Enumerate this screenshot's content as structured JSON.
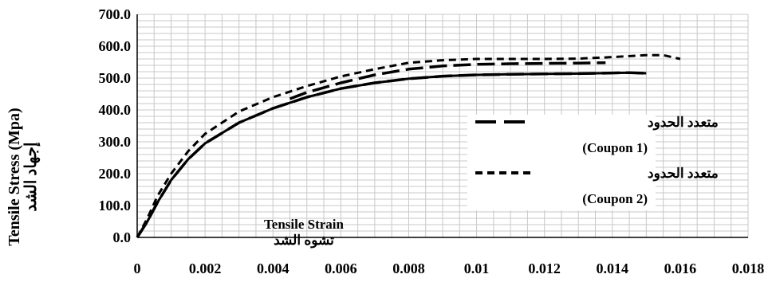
{
  "chart_data": {
    "type": "line",
    "xlabel_en": "Tensile Strain",
    "xlabel_ar": "تشوه الشد",
    "ylabel_en": "Tensile Stress (Mpa)",
    "ylabel_ar": "إجهاد الشد",
    "xlim": [
      0,
      0.018
    ],
    "ylim": [
      0,
      700
    ],
    "x_ticks": [
      "0",
      "0.002",
      "0.004",
      "0.006",
      "0.008",
      "0.01",
      "0.012",
      "0.014",
      "0.016",
      "0.018"
    ],
    "y_ticks": [
      "0.0",
      "100.0",
      "200.0",
      "300.0",
      "400.0",
      "500.0",
      "600.0",
      "700.0"
    ],
    "grid": true,
    "legend_position": "right",
    "series": [
      {
        "name_ar": "متعدد الحدود",
        "name_en": "(Coupon 1)",
        "style": "long-dash",
        "color": "#000000",
        "points": [
          [
            0,
            0
          ],
          [
            0.0003,
            50
          ],
          [
            0.0006,
            110
          ],
          [
            0.001,
            180
          ],
          [
            0.0015,
            245
          ],
          [
            0.002,
            295
          ],
          [
            0.003,
            360
          ],
          [
            0.004,
            405
          ],
          [
            0.005,
            440
          ],
          [
            0.006,
            467
          ],
          [
            0.007,
            485
          ],
          [
            0.008,
            498
          ],
          [
            0.009,
            506
          ],
          [
            0.01,
            510
          ],
          [
            0.011,
            512
          ],
          [
            0.012,
            513
          ],
          [
            0.013,
            514
          ],
          [
            0.014,
            516
          ],
          [
            0.0145,
            517
          ],
          [
            0.015,
            515
          ]
        ]
      },
      {
        "name_ar": "متعدد الحدود",
        "name_en": "(Coupon 2)",
        "style": "short-dash",
        "color": "#000000",
        "points": [
          [
            0,
            0
          ],
          [
            0.0003,
            60
          ],
          [
            0.0006,
            130
          ],
          [
            0.001,
            200
          ],
          [
            0.0015,
            270
          ],
          [
            0.002,
            325
          ],
          [
            0.003,
            395
          ],
          [
            0.004,
            440
          ],
          [
            0.005,
            475
          ],
          [
            0.006,
            505
          ],
          [
            0.007,
            528
          ],
          [
            0.008,
            548
          ],
          [
            0.009,
            556
          ],
          [
            0.01,
            560
          ],
          [
            0.011,
            560
          ],
          [
            0.012,
            560
          ],
          [
            0.013,
            561
          ],
          [
            0.014,
            566
          ],
          [
            0.015,
            572
          ],
          [
            0.0155,
            572
          ],
          [
            0.016,
            560
          ]
        ]
      },
      {
        "name_ar": "",
        "name_en": "",
        "style": "long-dash",
        "color": "#000000",
        "points": [
          [
            0.0045,
            435
          ],
          [
            0.005,
            455
          ],
          [
            0.006,
            485
          ],
          [
            0.007,
            510
          ],
          [
            0.008,
            528
          ],
          [
            0.009,
            538
          ],
          [
            0.01,
            543
          ],
          [
            0.011,
            545
          ],
          [
            0.012,
            546
          ],
          [
            0.013,
            547
          ],
          [
            0.0138,
            548
          ]
        ]
      }
    ]
  }
}
